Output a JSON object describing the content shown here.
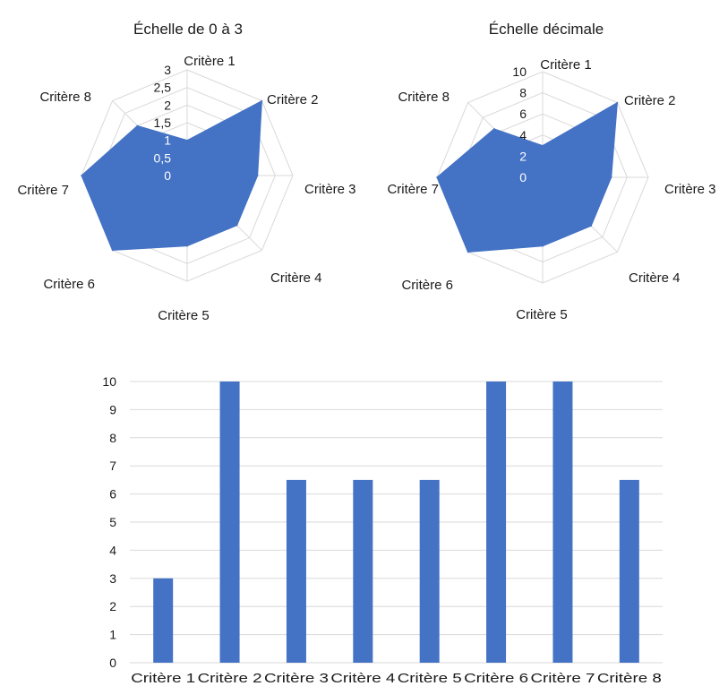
{
  "colors": {
    "series": "#4472c4",
    "grid": "#d9d9d9",
    "text": "#1a1a1a",
    "radar_inner_tick": "#ffffff"
  },
  "chart_data": [
    {
      "type": "radar",
      "title": "Échelle de 0 à 3",
      "categories": [
        "Critère 1",
        "Critère 2",
        "Critère 3",
        "Critère 4",
        "Critère 5",
        "Critère 6",
        "Critère 7",
        "Critère 8"
      ],
      "values": [
        1,
        3,
        2,
        2,
        2,
        3,
        3,
        2
      ],
      "ylim": [
        0,
        3
      ],
      "ticks": [
        "0",
        "0,5",
        "1",
        "1,5",
        "2",
        "2,5",
        "3"
      ],
      "tick_values": [
        0,
        0.5,
        1,
        1.5,
        2,
        2.5,
        3
      ],
      "legend": "none"
    },
    {
      "type": "radar",
      "title": "Échelle décimale",
      "categories": [
        "Critère 1",
        "Critère 2",
        "Critère 3",
        "Critère 4",
        "Critère 5",
        "Critère 6",
        "Critère 7",
        "Critère 8"
      ],
      "values": [
        3,
        10,
        6.5,
        6.5,
        6.5,
        10,
        10,
        6.5
      ],
      "ylim": [
        0,
        10
      ],
      "ticks": [
        "0",
        "2",
        "4",
        "6",
        "8",
        "10"
      ],
      "tick_values": [
        0,
        2,
        4,
        6,
        8,
        10
      ],
      "legend": "none"
    },
    {
      "type": "bar",
      "title": "",
      "categories": [
        "Critère 1",
        "Critère 2",
        "Critère 3",
        "Critère 4",
        "Critère 5",
        "Critère 6",
        "Critère 7",
        "Critère 8"
      ],
      "values": [
        3,
        10,
        6.5,
        6.5,
        6.5,
        10,
        10,
        6.5
      ],
      "ylim": [
        0,
        10
      ],
      "ticks": [
        "0",
        "1",
        "2",
        "3",
        "4",
        "5",
        "6",
        "7",
        "8",
        "9",
        "10"
      ],
      "xlabel": "",
      "ylabel": "",
      "grid": true,
      "legend": "none"
    }
  ]
}
